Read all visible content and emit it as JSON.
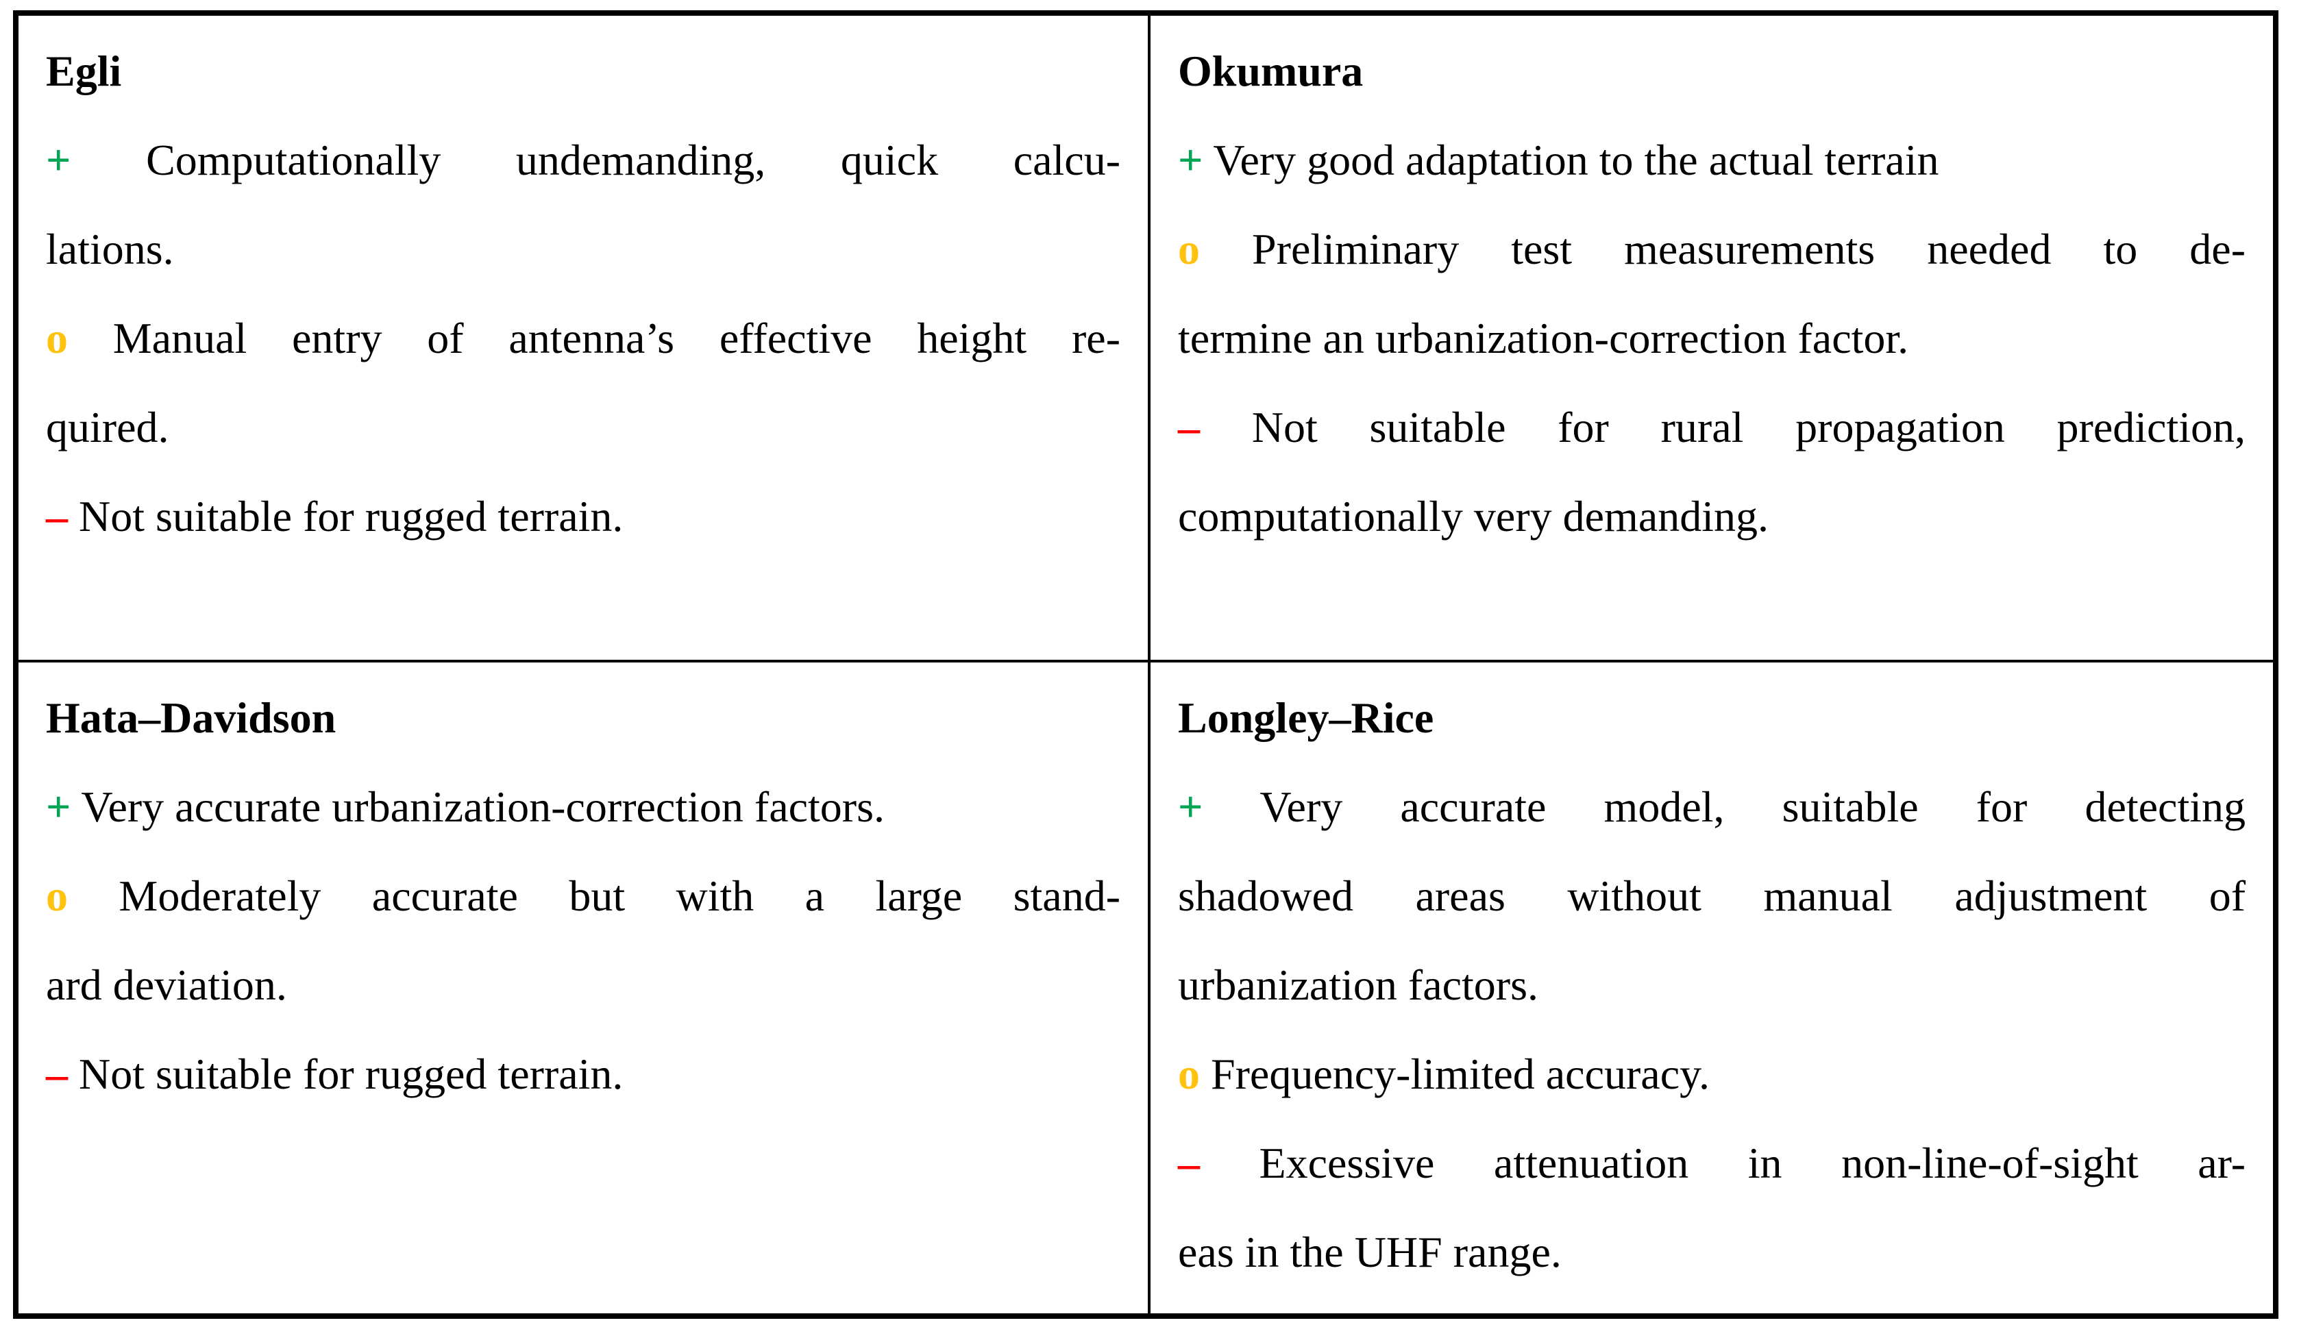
{
  "colors": {
    "pro": "#00A651",
    "neutral": "#FFC20E",
    "con": "#FF0000",
    "border": "#000000",
    "text": "#000000",
    "background": "#FFFFFF"
  },
  "table": {
    "cells": [
      {
        "title": "Egli",
        "items": [
          {
            "type": "pro",
            "marker": "+",
            "lines": [
              "Computationally undemanding, quick calcu-",
              "lations."
            ]
          },
          {
            "type": "neutral",
            "marker": "o",
            "lines": [
              "Manual entry of antenna’s effective height re-",
              "quired."
            ]
          },
          {
            "type": "con",
            "marker": "–",
            "lines": [
              "Not suitable for rugged terrain."
            ]
          }
        ]
      },
      {
        "title": "Okumura",
        "items": [
          {
            "type": "pro",
            "marker": "+",
            "lines": [
              "Very good adaptation to the actual terrain"
            ]
          },
          {
            "type": "neutral",
            "marker": "o",
            "lines": [
              "Preliminary test measurements needed to de-",
              "termine an urbanization-correction factor."
            ]
          },
          {
            "type": "con",
            "marker": "–",
            "lines": [
              "Not suitable for rural propagation prediction,",
              "computationally very demanding."
            ]
          }
        ]
      },
      {
        "title": "Hata–Davidson",
        "items": [
          {
            "type": "pro",
            "marker": "+",
            "lines": [
              "Very accurate urbanization-correction factors."
            ]
          },
          {
            "type": "neutral",
            "marker": "o",
            "lines": [
              "Moderately accurate but with a large stand-",
              "ard deviation."
            ]
          },
          {
            "type": "con",
            "marker": "–",
            "lines": [
              "Not suitable for rugged terrain."
            ]
          }
        ]
      },
      {
        "title": "Longley–Rice",
        "items": [
          {
            "type": "pro",
            "marker": "+",
            "lines": [
              "Very accurate model, suitable for detecting",
              "shadowed areas without manual adjustment of",
              "urbanization factors."
            ]
          },
          {
            "type": "neutral",
            "marker": "o",
            "lines": [
              "Frequency-limited accuracy."
            ]
          },
          {
            "type": "con",
            "marker": "–",
            "lines": [
              "Excessive attenuation in non-line-of-sight ar-",
              "eas in the UHF range."
            ]
          }
        ]
      }
    ]
  }
}
